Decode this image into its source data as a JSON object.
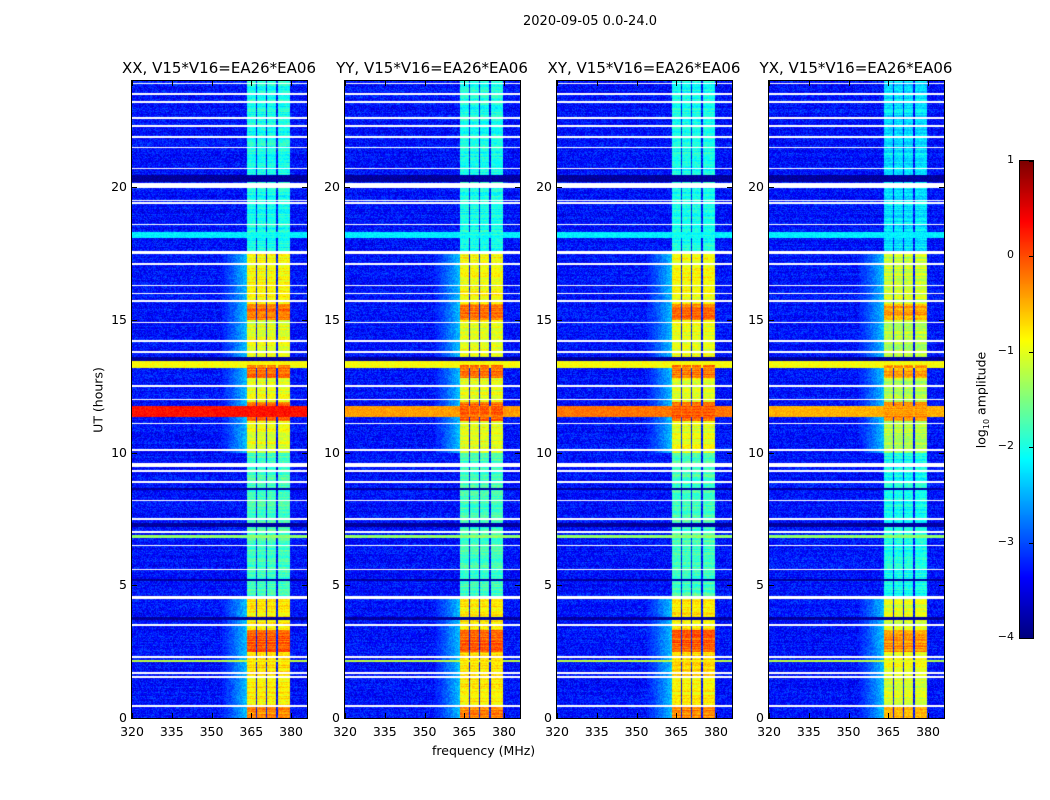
{
  "chart_data": {
    "type": "heatmap",
    "suptitle": "2020-09-05 0.0-24.0",
    "xlabel": "frequency (MHz)",
    "ylabel": "UT (hours)",
    "xlim": [
      320,
      386
    ],
    "ylim": [
      0,
      24
    ],
    "xticks": [
      "320",
      "335",
      "350",
      "365",
      "380"
    ],
    "xtick_values": [
      320,
      335,
      350,
      365,
      380
    ],
    "yticks": [
      "0",
      "5",
      "10",
      "15",
      "20"
    ],
    "ytick_values": [
      0,
      5,
      10,
      15,
      20
    ],
    "colorbar": {
      "label_prefix": "log",
      "label_sub": "10",
      "label_suffix": " amplitude",
      "range": [
        -4,
        1
      ],
      "ticks": [
        "1",
        "0",
        "−1",
        "−2",
        "−3",
        "−4"
      ],
      "tick_values": [
        1,
        0,
        -1,
        -2,
        -3,
        -4
      ],
      "colormap": "jet"
    },
    "panels": [
      {
        "title": "XX, V15*V16=EA26*EA06",
        "rfi_offset": 0.0,
        "red_line_level": 0.3
      },
      {
        "title": "YY, V15*V16=EA26*EA06",
        "rfi_offset": 0.0,
        "red_line_level": -0.4
      },
      {
        "title": "XY, V15*V16=EA26*EA06",
        "rfi_offset": 0.0,
        "red_line_level": -0.2
      },
      {
        "title": "YX, V15*V16=EA26*EA06",
        "rfi_offset": -0.25,
        "red_line_level": -0.5
      }
    ],
    "background_level": -3.3,
    "rfi_subbands_mhz": [
      [
        363.5,
        366.8
      ],
      [
        367.3,
        370.6
      ],
      [
        371.1,
        374.4
      ],
      [
        375.0,
        379.5
      ]
    ],
    "rfi_time_levels": [
      {
        "t": [
          0,
          0.5
        ],
        "level": -0.3
      },
      {
        "t": [
          0.5,
          1.55
        ],
        "level": -0.8
      },
      {
        "t": [
          1.55,
          2.5
        ],
        "level": -0.7
      },
      {
        "t": [
          2.5,
          3.3
        ],
        "level": -0.1
      },
      {
        "t": [
          3.3,
          4.5
        ],
        "level": -0.8
      },
      {
        "t": [
          4.5,
          10.0
        ],
        "level": -1.8
      },
      {
        "t": [
          10.0,
          11.2
        ],
        "level": -1.0
      },
      {
        "t": [
          11.2,
          11.9
        ],
        "level": -0.1
      },
      {
        "t": [
          11.9,
          12.8
        ],
        "level": -1.0
      },
      {
        "t": [
          12.8,
          13.3
        ],
        "level": -0.2
      },
      {
        "t": [
          13.3,
          15.0
        ],
        "level": -1.0
      },
      {
        "t": [
          15.0,
          15.6
        ],
        "level": -0.2
      },
      {
        "t": [
          15.6,
          17.5
        ],
        "level": -0.9
      },
      {
        "t": [
          17.5,
          24.0
        ],
        "level": -2.0
      }
    ],
    "broadband_lines": [
      {
        "t": [
          11.35,
          11.75
        ],
        "level": "red_line_level"
      },
      {
        "t": [
          13.2,
          13.45
        ],
        "level": -0.9
      },
      {
        "t": [
          2.1,
          2.2
        ],
        "level": -1.2
      },
      {
        "t": [
          6.8,
          6.9
        ],
        "level": -1.4
      },
      {
        "t": [
          18.1,
          18.3
        ],
        "level": -2.2
      }
    ],
    "dark_times": [
      [
        20.2,
        20.45
      ],
      [
        7.2,
        7.35
      ],
      [
        13.45,
        13.6
      ],
      [
        3.7,
        3.82
      ],
      [
        5.15,
        5.25
      ],
      [
        8.6,
        8.66
      ]
    ],
    "flagged_times": [
      0.45,
      1.55,
      1.7,
      2.3,
      3.5,
      4.5,
      4.56,
      5.6,
      6.5,
      7.0,
      7.5,
      8.2,
      8.9,
      9.3,
      9.5,
      9.56,
      10.1,
      11.1,
      12.0,
      12.5,
      13.8,
      14.2,
      14.9,
      15.7,
      16.0,
      16.3,
      17.1,
      17.5,
      17.56,
      18.6,
      19.4,
      19.5,
      20.0,
      20.06,
      20.12,
      20.7,
      21.5,
      21.9,
      22.3,
      22.6,
      23.2,
      23.5,
      23.9
    ]
  }
}
